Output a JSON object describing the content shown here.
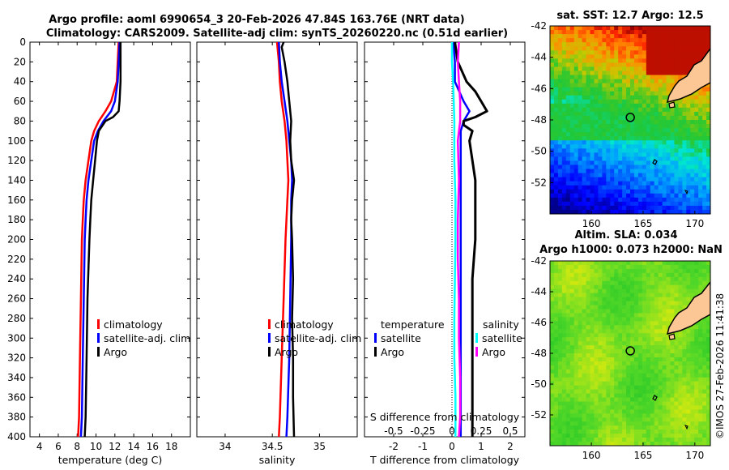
{
  "header": {
    "title_line1": "Argo profile: aoml 6990654_3 20-Feb-2026 47.84S 163.76E (NRT data)",
    "title_line2": "Climatology: CARS2009. Satellite-adj clim: synTS_20260220.nc (0.51d earlier)"
  },
  "colors": {
    "climatology": "#ff0000",
    "satellite": "#0000ff",
    "argo": "#000000",
    "temp_diff_sat": "#0000ff",
    "sal_diff_sat": "#00ffff",
    "sal_diff_argo": "#ff00ff"
  },
  "depth_axis": {
    "range": [
      0,
      400
    ],
    "ticks": [
      "0",
      "20",
      "40",
      "60",
      "80",
      "100",
      "120",
      "140",
      "160",
      "180",
      "200",
      "220",
      "240",
      "260",
      "280",
      "300",
      "320",
      "340",
      "360",
      "380",
      "400"
    ]
  },
  "chart_data": [
    {
      "type": "line",
      "id": "temperature",
      "xlabel": "temperature (deg C)",
      "ylabel": "",
      "xlim": [
        3,
        20
      ],
      "ylim": [
        400,
        0
      ],
      "xticks": [
        "4",
        "6",
        "8",
        "10",
        "12",
        "14",
        "16",
        "18"
      ],
      "xtick_values": [
        4,
        6,
        8,
        10,
        12,
        14,
        16,
        18
      ],
      "legend": [
        "climatology",
        "satellite-adj. clim",
        "Argo"
      ],
      "series": [
        {
          "name": "climatology",
          "depth": [
            0,
            20,
            40,
            60,
            70,
            80,
            90,
            100,
            120,
            140,
            160,
            180,
            200,
            260,
            320,
            380,
            400
          ],
          "values": [
            12.4,
            12.3,
            12.2,
            11.6,
            11.0,
            10.3,
            9.8,
            9.5,
            9.2,
            8.9,
            8.7,
            8.6,
            8.5,
            8.4,
            8.3,
            8.2,
            8.1
          ]
        },
        {
          "name": "satellite-adj. clim",
          "depth": [
            0,
            20,
            40,
            60,
            70,
            80,
            90,
            100,
            120,
            140,
            160,
            180,
            200,
            260,
            320,
            380,
            400
          ],
          "values": [
            12.5,
            12.4,
            12.3,
            12.0,
            11.6,
            10.8,
            10.2,
            9.8,
            9.5,
            9.2,
            9.0,
            8.9,
            8.8,
            8.7,
            8.6,
            8.5,
            8.4
          ]
        },
        {
          "name": "Argo",
          "depth": [
            0,
            20,
            40,
            60,
            70,
            76,
            80,
            90,
            100,
            120,
            140,
            160,
            180,
            200,
            260,
            320,
            380,
            400
          ],
          "values": [
            12.6,
            12.6,
            12.6,
            12.5,
            12.4,
            11.8,
            11.0,
            10.3,
            10.1,
            9.9,
            9.7,
            9.5,
            9.4,
            9.3,
            9.1,
            9.0,
            8.9,
            8.8
          ]
        }
      ]
    },
    {
      "type": "line",
      "id": "salinity",
      "xlabel": "salinity",
      "ylabel": "",
      "xlim": [
        33.7,
        35.4
      ],
      "ylim": [
        400,
        0
      ],
      "xticks": [
        "34",
        "34.5",
        "35"
      ],
      "xtick_values": [
        34,
        34.5,
        35
      ],
      "legend": [
        "climatology",
        "satellite-adj. clim",
        "Argo"
      ],
      "series": [
        {
          "name": "climatology",
          "depth": [
            0,
            20,
            40,
            60,
            80,
            100,
            120,
            140,
            160,
            200,
            260,
            320,
            380,
            400
          ],
          "values": [
            34.55,
            34.57,
            34.58,
            34.6,
            34.63,
            34.65,
            34.66,
            34.67,
            34.66,
            34.64,
            34.62,
            34.6,
            34.58,
            34.57
          ]
        },
        {
          "name": "satellite-adj. clim",
          "depth": [
            0,
            20,
            40,
            60,
            80,
            100,
            120,
            140,
            160,
            200,
            260,
            320,
            380,
            400
          ],
          "values": [
            34.57,
            34.58,
            34.6,
            34.63,
            34.66,
            34.68,
            34.7,
            34.71,
            34.7,
            34.7,
            34.69,
            34.68,
            34.66,
            34.65
          ]
        },
        {
          "name": "Argo",
          "depth": [
            0,
            5,
            20,
            40,
            60,
            80,
            100,
            120,
            140,
            160,
            180,
            200,
            240,
            280,
            320,
            360,
            400
          ],
          "values": [
            34.62,
            34.6,
            34.63,
            34.66,
            34.68,
            34.7,
            34.69,
            34.7,
            34.73,
            34.71,
            34.7,
            34.71,
            34.72,
            34.71,
            34.72,
            34.72,
            34.73
          ]
        }
      ]
    },
    {
      "type": "line",
      "id": "difference",
      "xlabel": "T difference from climatology",
      "x2label": "S difference from climatology",
      "ylabel": "",
      "xlim": [
        -3,
        2.5
      ],
      "ylim": [
        400,
        0
      ],
      "xticks": [
        "-2",
        "-1",
        "0",
        "1",
        "2"
      ],
      "xtick_values": [
        -2,
        -1,
        0,
        1,
        2
      ],
      "x2ticks": [
        "-0.5",
        "-0.25",
        "0",
        "0.25",
        "0.5"
      ],
      "x2tick_values": [
        -0.5,
        -0.25,
        0,
        0.25,
        0.5
      ],
      "legend_temperature_title": "temperature",
      "legend_salinity_title": "salinity",
      "legend_temperature": [
        "satellite",
        "Argo"
      ],
      "legend_salinity": [
        "satellite",
        "Argo"
      ],
      "series": [
        {
          "name": "temperature satellite",
          "depth": [
            0,
            20,
            40,
            60,
            70,
            80,
            90,
            120,
            160,
            200,
            280,
            320,
            400
          ],
          "values": [
            0.05,
            0.1,
            0.1,
            0.4,
            0.6,
            0.4,
            0.3,
            0.3,
            0.3,
            0.3,
            0.3,
            0.3,
            0.3
          ]
        },
        {
          "name": "temperature Argo",
          "depth": [
            0,
            20,
            40,
            50,
            60,
            70,
            76,
            80,
            84,
            90,
            100,
            120,
            140,
            160,
            180,
            200,
            240,
            280,
            320,
            360,
            400
          ],
          "values": [
            0.1,
            0.2,
            0.5,
            0.8,
            1.0,
            1.2,
            0.8,
            0.4,
            0.4,
            0.7,
            0.6,
            0.7,
            0.8,
            0.8,
            0.8,
            0.8,
            0.7,
            0.7,
            0.7,
            0.7,
            0.7
          ]
        },
        {
          "name": "salinity satellite",
          "depth": [
            0,
            20,
            40,
            80,
            120,
            160,
            200,
            280,
            320,
            360,
            400
          ],
          "values": [
            0.0,
            0.0,
            0.01,
            0.02,
            0.02,
            0.03,
            0.03,
            0.02,
            0.02,
            0.03,
            0.03
          ]
        },
        {
          "name": "salinity Argo",
          "depth": [
            0,
            20,
            40,
            60,
            80,
            100,
            140,
            180,
            220,
            260,
            300,
            340,
            380,
            400
          ],
          "values": [
            0.06,
            0.05,
            0.06,
            0.07,
            0.07,
            0.05,
            0.06,
            0.05,
            0.05,
            0.06,
            0.06,
            0.07,
            0.07,
            0.06
          ]
        }
      ]
    },
    {
      "type": "heatmap",
      "id": "sst-map",
      "title": "sat. SST: 12.7 Argo: 12.5",
      "xlim": [
        156,
        171.5
      ],
      "ylim": [
        -54,
        -42
      ],
      "xticks": [
        "160",
        "165",
        "170"
      ],
      "xtick_values": [
        160,
        165,
        170
      ],
      "yticks": [
        "-42",
        "-44",
        "-46",
        "-48",
        "-50",
        "-52"
      ],
      "ytick_values": [
        -42,
        -44,
        -46,
        -48,
        -50,
        -52
      ],
      "marker": {
        "lon": 163.76,
        "lat": -47.84
      }
    },
    {
      "type": "heatmap",
      "id": "sla-map",
      "title": "Altim. SLA: 0.034",
      "subtitle": "Argo h1000: 0.073 h2000: NaN",
      "xlim": [
        156,
        171.5
      ],
      "ylim": [
        -54,
        -42
      ],
      "xticks": [
        "160",
        "165",
        "170"
      ],
      "xtick_values": [
        160,
        165,
        170
      ],
      "yticks": [
        "-42",
        "-44",
        "-46",
        "-48",
        "-50",
        "-52"
      ],
      "ytick_values": [
        -42,
        -44,
        -46,
        -48,
        -50,
        -52
      ],
      "marker": {
        "lon": 163.76,
        "lat": -47.84
      }
    }
  ],
  "footer": {
    "copyright": "©IMOS 27-Feb-2026 11:41:38"
  }
}
